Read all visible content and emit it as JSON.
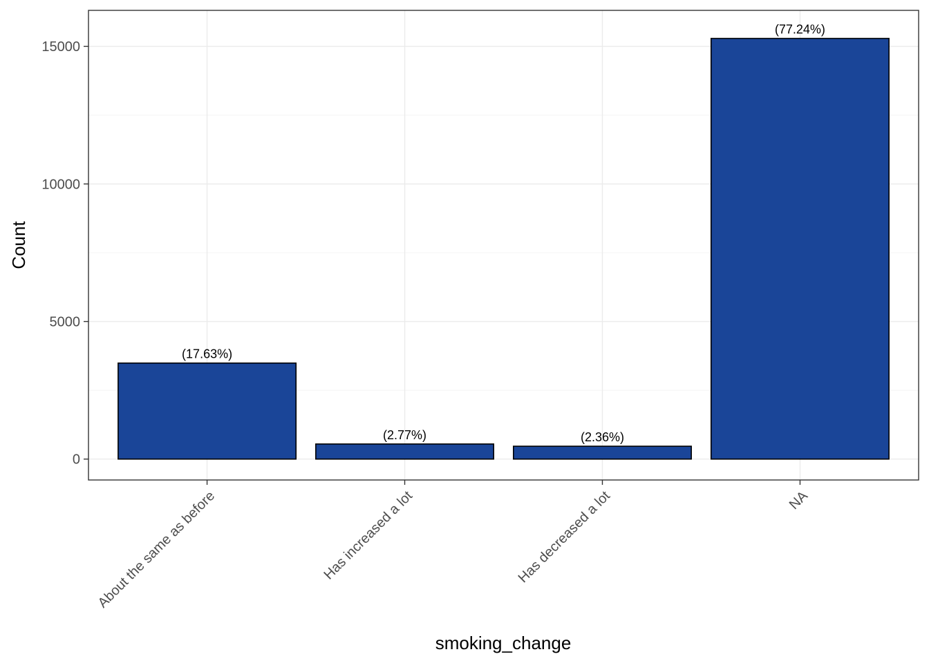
{
  "chart_data": {
    "type": "bar",
    "categories": [
      "About the same as before",
      "Has increased a lot",
      "Has decreased a lot",
      "NA"
    ],
    "values": [
      3490,
      548,
      467,
      15290
    ],
    "labels": [
      "(17.63%)",
      "(2.77%)",
      "(2.36%)",
      "(77.24%)"
    ],
    "xlabel": "smoking_change",
    "ylabel": "Count",
    "ylim": [
      -760,
      16310
    ],
    "yticks": [
      0,
      5000,
      10000,
      15000
    ],
    "grid": true,
    "legend": "none"
  },
  "colors": {
    "bar_fill": "#1a4598",
    "bar_stroke": "#000000",
    "grid_major": "#ebebeb",
    "grid_minor": "#f4f4f4",
    "panel_border": "#333333",
    "tick_label": "#4d4d4d"
  }
}
